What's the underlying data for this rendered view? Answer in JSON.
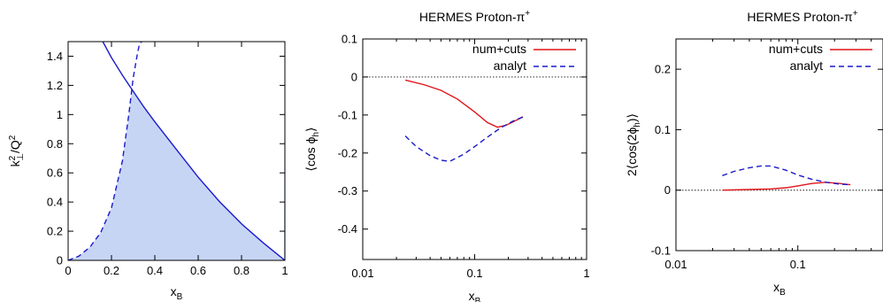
{
  "chart_data": [
    {
      "type": "area",
      "title": "",
      "xlabel": "x",
      "xlabel_sub": "B",
      "ylabel_main": "k",
      "ylabel_sub": "⊥",
      "ylabel_sup": "2",
      "ylabel_rest": "/Q",
      "ylabel_sup2": "2",
      "xscale": "linear",
      "xlim": [
        0,
        1
      ],
      "ylim": [
        0,
        1.5
      ],
      "xticks": [
        "0",
        "0.2",
        "0.4",
        "0.6",
        "0.8",
        "1"
      ],
      "xtick_values": [
        0,
        0.2,
        0.4,
        0.6,
        0.8,
        1
      ],
      "yticks": [
        "0",
        "0.2",
        "0.4",
        "0.6",
        "0.8",
        "1",
        "1.2",
        "1.4"
      ],
      "ytick_values": [
        0,
        0.2,
        0.4,
        0.6,
        0.8,
        1,
        1.2,
        1.4
      ],
      "series": [
        {
          "style": "solid",
          "color": "#1a1acc",
          "x": [
            0.16,
            0.2,
            0.25,
            0.3,
            0.35,
            0.4,
            0.5,
            0.6,
            0.7,
            0.8,
            0.9,
            1.0
          ],
          "y": [
            1.5,
            1.39,
            1.27,
            1.16,
            1.05,
            0.95,
            0.76,
            0.57,
            0.4,
            0.25,
            0.12,
            0.0
          ]
        },
        {
          "style": "dashed",
          "color": "#1a1acc",
          "x": [
            0.0,
            0.05,
            0.1,
            0.15,
            0.2,
            0.25,
            0.28,
            0.3,
            0.32,
            0.33,
            0.34
          ],
          "y": [
            0.0,
            0.03,
            0.09,
            0.19,
            0.36,
            0.68,
            1.0,
            1.25,
            1.42,
            1.49,
            1.5
          ]
        }
      ],
      "fill_color": "#c7d5f5"
    },
    {
      "type": "line",
      "title": "HERMES Proton-π",
      "title_sup": "+",
      "xlabel": "x",
      "xlabel_sub": "B",
      "ylabel": "⟨cos ϕ",
      "ylabel_sub": "h",
      "ylabel_end": "⟩",
      "xscale": "log",
      "xlim": [
        0.01,
        1
      ],
      "ylim": [
        -0.48,
        0.1
      ],
      "xticks": [
        "0.01",
        "0.1",
        "1"
      ],
      "xtick_values": [
        0.01,
        0.1,
        1
      ],
      "yticks": [
        "0.1",
        "0",
        "-0.1",
        "-0.2",
        "-0.3",
        "-0.4"
      ],
      "ytick_values": [
        0.1,
        0,
        -0.1,
        -0.2,
        -0.3,
        -0.4
      ],
      "legend": "top-right",
      "series": [
        {
          "name": "num+cuts",
          "style": "solid",
          "color": "#e0141a",
          "x": [
            0.024,
            0.035,
            0.05,
            0.07,
            0.1,
            0.13,
            0.16,
            0.19,
            0.22,
            0.27
          ],
          "y": [
            -0.008,
            -0.02,
            -0.035,
            -0.058,
            -0.092,
            -0.12,
            -0.132,
            -0.127,
            -0.118,
            -0.105
          ]
        },
        {
          "name": "analyt",
          "style": "dashed",
          "color": "#1a1acc",
          "x": [
            0.024,
            0.03,
            0.04,
            0.05,
            0.06,
            0.08,
            0.1,
            0.13,
            0.17,
            0.22,
            0.27
          ],
          "y": [
            -0.155,
            -0.183,
            -0.207,
            -0.219,
            -0.222,
            -0.203,
            -0.183,
            -0.158,
            -0.134,
            -0.116,
            -0.105
          ]
        }
      ]
    },
    {
      "type": "line",
      "title": "HERMES Proton-π",
      "title_sup": "+",
      "xlabel": "x",
      "xlabel_sub": "B",
      "ylabel": "2⟨cos(2ϕ",
      "ylabel_sub": "h",
      "ylabel_end": ")⟩",
      "xscale": "log",
      "xlim": [
        0.01,
        0.5
      ],
      "ylim": [
        -0.1,
        0.25
      ],
      "xticks": [
        "0.01",
        "0.1"
      ],
      "xtick_values": [
        0.01,
        0.1
      ],
      "yticks": [
        "0.2",
        "0.1",
        "0",
        "-0.1"
      ],
      "ytick_values": [
        0.2,
        0.1,
        0,
        -0.1
      ],
      "legend": "top-right",
      "series": [
        {
          "name": "num+cuts",
          "style": "solid",
          "color": "#e0141a",
          "x": [
            0.024,
            0.04,
            0.06,
            0.08,
            0.1,
            0.13,
            0.17,
            0.22,
            0.27
          ],
          "y": [
            0.0,
            0.001,
            0.002,
            0.004,
            0.007,
            0.011,
            0.013,
            0.011,
            0.009
          ]
        },
        {
          "name": "analyt",
          "style": "dashed",
          "color": "#1a1acc",
          "x": [
            0.024,
            0.03,
            0.04,
            0.05,
            0.06,
            0.08,
            0.1,
            0.13,
            0.17,
            0.22,
            0.27
          ],
          "y": [
            0.024,
            0.031,
            0.037,
            0.04,
            0.04,
            0.033,
            0.025,
            0.018,
            0.013,
            0.01,
            0.009
          ]
        }
      ]
    }
  ]
}
